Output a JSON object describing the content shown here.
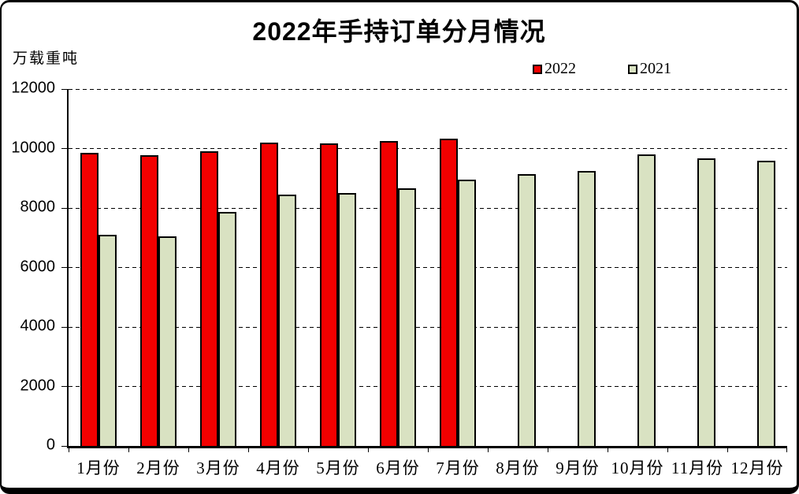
{
  "chart": {
    "title": "2022年手持订单分月情况",
    "unit_label": "万载重吨"
  },
  "chart_data": {
    "type": "bar",
    "title": "2022年手持订单分月情况",
    "xlabel": "",
    "ylabel": "万载重吨",
    "categories": [
      "1月份",
      "2月份",
      "3月份",
      "4月份",
      "5月份",
      "6月份",
      "7月份",
      "8月份",
      "9月份",
      "10月份",
      "11月份",
      "12月份"
    ],
    "series": [
      {
        "name": "2022",
        "color": "#f20000",
        "values": [
          9850,
          9780,
          9910,
          10200,
          10180,
          10250,
          10330,
          null,
          null,
          null,
          null,
          null
        ]
      },
      {
        "name": "2021",
        "color": "#d9e2c2",
        "values": [
          7100,
          7060,
          7860,
          8440,
          8500,
          8660,
          8950,
          9150,
          9250,
          9800,
          9660,
          9590
        ]
      }
    ],
    "ylim": [
      0,
      12000
    ],
    "ytick_step": 2000,
    "grid": "horizontal-dashed",
    "legend_position": "top-right"
  }
}
